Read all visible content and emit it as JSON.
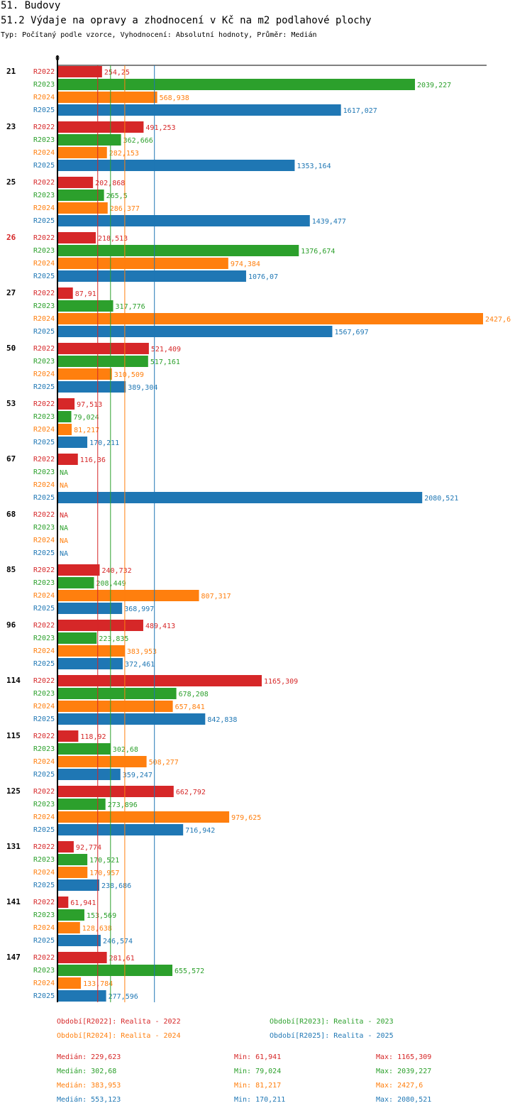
{
  "header": {
    "title": "51. Budovy",
    "subtitle": "51.2 Výdaje na opravy a zhodnocení v Kč na m2 podlahové plochy",
    "meta": "Typ: Počítaný podle vzorce, Vyhodnocení: Absolutní hodnoty, Průměr: Medián"
  },
  "colors": {
    "R2022": "#d62728",
    "R2023": "#2ca02c",
    "R2024": "#ff7f0e",
    "R2025": "#1f77b4",
    "highlight": "#d62728",
    "text": "#000000"
  },
  "chart_data": {
    "type": "bar",
    "orientation": "horizontal",
    "title": "51.2 Výdaje na opravy a zhodnocení v Kč na m2 podlahové plochy",
    "axis_zero_label": "0",
    "xlim": [
      0,
      2427.6
    ],
    "na_label": "NA",
    "series_names": [
      "R2022",
      "R2023",
      "R2024",
      "R2025"
    ],
    "highlight_category": "26",
    "categories": [
      "21",
      "23",
      "25",
      "26",
      "27",
      "50",
      "53",
      "67",
      "68",
      "85",
      "96",
      "114",
      "115",
      "125",
      "131",
      "141",
      "147"
    ],
    "groups": [
      {
        "category": "21",
        "values": [
          254.25,
          2039.227,
          568.938,
          1617.027
        ],
        "labels": [
          "254,25",
          "2039,227",
          "568,938",
          "1617,027"
        ]
      },
      {
        "category": "23",
        "values": [
          491.253,
          362.666,
          282.153,
          1353.164
        ],
        "labels": [
          "491,253",
          "362,666",
          "282,153",
          "1353,164"
        ]
      },
      {
        "category": "25",
        "values": [
          202.868,
          265.5,
          286.377,
          1439.477
        ],
        "labels": [
          "202,868",
          "265,5",
          "286,377",
          "1439,477"
        ]
      },
      {
        "category": "26",
        "values": [
          218.513,
          1376.674,
          974.384,
          1076.07
        ],
        "labels": [
          "218,513",
          "1376,674",
          "974,384",
          "1076,07"
        ]
      },
      {
        "category": "27",
        "values": [
          87.91,
          317.776,
          2427.6,
          1567.697
        ],
        "labels": [
          "87,91",
          "317,776",
          "2427,6",
          "1567,697"
        ]
      },
      {
        "category": "50",
        "values": [
          521.409,
          517.161,
          310.509,
          389.304
        ],
        "labels": [
          "521,409",
          "517,161",
          "310,509",
          "389,304"
        ]
      },
      {
        "category": "53",
        "values": [
          97.513,
          79.024,
          81.217,
          170.211
        ],
        "labels": [
          "97,513",
          "79,024",
          "81,217",
          "170,211"
        ]
      },
      {
        "category": "67",
        "values": [
          116.36,
          null,
          null,
          2080.521
        ],
        "labels": [
          "116,36",
          "NA",
          "NA",
          "2080,521"
        ]
      },
      {
        "category": "68",
        "values": [
          null,
          null,
          null,
          null
        ],
        "labels": [
          "NA",
          "NA",
          "NA",
          "NA"
        ]
      },
      {
        "category": "85",
        "values": [
          240.732,
          208.449,
          807.317,
          368.997
        ],
        "labels": [
          "240,732",
          "208,449",
          "807,317",
          "368,997"
        ]
      },
      {
        "category": "96",
        "values": [
          489.413,
          223.835,
          383.953,
          372.461
        ],
        "labels": [
          "489,413",
          "223,835",
          "383,953",
          "372,461"
        ]
      },
      {
        "category": "114",
        "values": [
          1165.309,
          678.208,
          657.841,
          842.838
        ],
        "labels": [
          "1165,309",
          "678,208",
          "657,841",
          "842,838"
        ]
      },
      {
        "category": "115",
        "values": [
          118.92,
          302.68,
          508.277,
          359.247
        ],
        "labels": [
          "118,92",
          "302,68",
          "508,277",
          "359,247"
        ]
      },
      {
        "category": "125",
        "values": [
          662.792,
          273.896,
          979.625,
          716.942
        ],
        "labels": [
          "662,792",
          "273,896",
          "979,625",
          "716,942"
        ]
      },
      {
        "category": "131",
        "values": [
          92.774,
          170.521,
          170.957,
          238.686
        ],
        "labels": [
          "92,774",
          "170,521",
          "170,957",
          "238,686"
        ]
      },
      {
        "category": "141",
        "values": [
          61.941,
          153.569,
          128.638,
          246.574
        ],
        "labels": [
          "61,941",
          "153,569",
          "128,638",
          "246,574"
        ]
      },
      {
        "category": "147",
        "values": [
          281.61,
          655.572,
          133.784,
          277.596
        ],
        "labels": [
          "281,61",
          "655,572",
          "133,784",
          "277,596"
        ]
      }
    ],
    "medians": [
      229.623,
      302.68,
      383.953,
      553.123
    ]
  },
  "legend": [
    {
      "series": "R2022",
      "text": "Období[R2022]: Realita - 2022"
    },
    {
      "series": "R2023",
      "text": "Období[R2023]: Realita - 2023"
    },
    {
      "series": "R2024",
      "text": "Období[R2024]: Realita - 2024"
    },
    {
      "series": "R2025",
      "text": "Období[R2025]: Realita - 2025"
    }
  ],
  "stats": [
    {
      "series": "R2022",
      "median": "Medián: 229,623",
      "min": "Min: 61,941",
      "max": "Max: 1165,309"
    },
    {
      "series": "R2023",
      "median": "Medián: 302,68",
      "min": "Min: 79,024",
      "max": "Max: 2039,227"
    },
    {
      "series": "R2024",
      "median": "Medián: 383,953",
      "min": "Min: 81,217",
      "max": "Max: 2427,6"
    },
    {
      "series": "R2025",
      "median": "Medián: 553,123",
      "min": "Min: 170,211",
      "max": "Max: 2080,521"
    }
  ]
}
